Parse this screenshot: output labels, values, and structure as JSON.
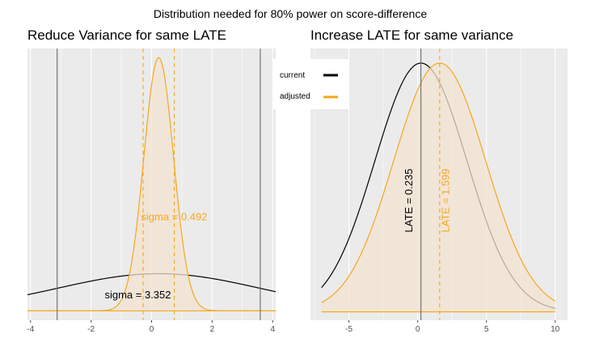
{
  "colors": {
    "current": "#000000",
    "adjusted": "#f5a81c",
    "panel_bg": "#ebebeb",
    "grid": "#ffffff",
    "fill": "#f3e3d0",
    "vline": "#6b6b6b"
  },
  "suptitle": "Distribution needed for 80% power on score-difference",
  "legend": {
    "placement": "between panels, top",
    "items": [
      {
        "label": "current",
        "color": "#000000"
      },
      {
        "label": "adjusted",
        "color": "#f5a81c"
      }
    ]
  },
  "chart_data": [
    {
      "type": "line",
      "title": "Reduce Variance for same LATE",
      "xlim": [
        -4.1,
        4.1
      ],
      "ylim": [
        -0.03,
        0.84
      ],
      "x_ticks": [
        -4,
        -2,
        0,
        2,
        4
      ],
      "x_tick_labels": [
        "-4",
        "-2",
        "0",
        "2",
        "4"
      ],
      "grid": true,
      "mean": 0.235,
      "series": [
        {
          "name": "current",
          "kind": "normal-density",
          "mean": 0.235,
          "sd": 3.352,
          "x_range": [
            -4.1,
            4.1
          ]
        },
        {
          "name": "adjusted",
          "kind": "normal-density",
          "mean": 0.235,
          "sd": 0.492,
          "x_range": [
            -4.1,
            4.1
          ],
          "filled": true
        }
      ],
      "vlines": [
        {
          "x": -3.12,
          "color": "#6b6b6b",
          "style": "solid"
        },
        {
          "x": 3.59,
          "color": "#6b6b6b",
          "style": "solid"
        },
        {
          "x": -0.28,
          "color": "#f5a81c",
          "style": "dashed"
        },
        {
          "x": 0.75,
          "color": "#f5a81c",
          "style": "dashed"
        }
      ],
      "annotations": [
        {
          "text": "sigma = 0.492",
          "color": "#f5a81c",
          "x": -0.35,
          "y": 0.29
        },
        {
          "text": "sigma = 3.352",
          "color": "#000000",
          "x": -1.55,
          "y": 0.04
        }
      ]
    },
    {
      "type": "line",
      "title": "Increase LATE for same variance",
      "xlim": [
        -7.8,
        10.9
      ],
      "ylim": [
        -0.004,
        0.126
      ],
      "x_ticks": [
        -5,
        0,
        5,
        10
      ],
      "x_tick_labels": [
        "-5",
        "0",
        "5",
        "10"
      ],
      "grid": true,
      "series": [
        {
          "name": "current",
          "kind": "normal-density",
          "mean": 0.235,
          "sd": 3.352,
          "x_range": [
            -7,
            10
          ]
        },
        {
          "name": "adjusted",
          "kind": "normal-density",
          "mean": 1.599,
          "sd": 3.352,
          "x_range": [
            -7,
            10
          ],
          "filled": true
        }
      ],
      "vlines": [
        {
          "x": 0.235,
          "color": "#6b6b6b",
          "style": "solid"
        },
        {
          "x": 1.599,
          "color": "#f5a81c",
          "style": "dashed"
        }
      ],
      "annotations": [
        {
          "text": "LATE = 0.235",
          "color": "#000000",
          "x": -0.4,
          "y": 0.038,
          "rotate": -90
        },
        {
          "text": "LATE = 1.599",
          "color": "#f5a81c",
          "x": 2.3,
          "y": 0.038,
          "rotate": -90
        }
      ]
    }
  ]
}
